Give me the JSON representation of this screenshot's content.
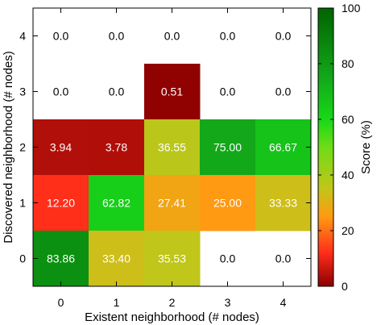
{
  "chart_data": {
    "type": "heatmap",
    "xlabel": "Existent neighborhood (# nodes)",
    "ylabel": "Discovered neighborhood (# nodes)",
    "x_ticks": [
      "0",
      "1",
      "2",
      "3",
      "4"
    ],
    "y_ticks": [
      "0",
      "1",
      "2",
      "3",
      "4"
    ],
    "colorbar": {
      "label": "Score (%)",
      "range": [
        0,
        100
      ],
      "ticks": [
        "0",
        "20",
        "40",
        "60",
        "80",
        "100"
      ]
    },
    "cells": [
      {
        "x": 0,
        "y": 4,
        "value": 0.0,
        "label": "0.0",
        "colored": false
      },
      {
        "x": 1,
        "y": 4,
        "value": 0.0,
        "label": "0.0",
        "colored": false
      },
      {
        "x": 2,
        "y": 4,
        "value": 0.0,
        "label": "0.0",
        "colored": false
      },
      {
        "x": 3,
        "y": 4,
        "value": 0.0,
        "label": "0.0",
        "colored": false
      },
      {
        "x": 4,
        "y": 4,
        "value": 0.0,
        "label": "0.0",
        "colored": false
      },
      {
        "x": 0,
        "y": 3,
        "value": 0.0,
        "label": "0.0",
        "colored": false
      },
      {
        "x": 1,
        "y": 3,
        "value": 0.0,
        "label": "0.0",
        "colored": false
      },
      {
        "x": 2,
        "y": 3,
        "value": 0.51,
        "label": "0.51",
        "colored": true
      },
      {
        "x": 3,
        "y": 3,
        "value": 0.0,
        "label": "0.0",
        "colored": false
      },
      {
        "x": 4,
        "y": 3,
        "value": 0.0,
        "label": "0.0",
        "colored": false
      },
      {
        "x": 0,
        "y": 2,
        "value": 3.94,
        "label": "3.94",
        "colored": true
      },
      {
        "x": 1,
        "y": 2,
        "value": 3.78,
        "label": "3.78",
        "colored": true
      },
      {
        "x": 2,
        "y": 2,
        "value": 36.55,
        "label": "36.55",
        "colored": true
      },
      {
        "x": 3,
        "y": 2,
        "value": 75.0,
        "label": "75.00",
        "colored": true
      },
      {
        "x": 4,
        "y": 2,
        "value": 66.67,
        "label": "66.67",
        "colored": true
      },
      {
        "x": 0,
        "y": 1,
        "value": 12.2,
        "label": "12.20",
        "colored": true
      },
      {
        "x": 1,
        "y": 1,
        "value": 62.82,
        "label": "62.82",
        "colored": true
      },
      {
        "x": 2,
        "y": 1,
        "value": 27.41,
        "label": "27.41",
        "colored": true
      },
      {
        "x": 3,
        "y": 1,
        "value": 25.0,
        "label": "25.00",
        "colored": true
      },
      {
        "x": 4,
        "y": 1,
        "value": 33.33,
        "label": "33.33",
        "colored": true
      },
      {
        "x": 0,
        "y": 0,
        "value": 83.86,
        "label": "83.86",
        "colored": true
      },
      {
        "x": 1,
        "y": 0,
        "value": 33.4,
        "label": "33.40",
        "colored": true
      },
      {
        "x": 2,
        "y": 0,
        "value": 35.53,
        "label": "35.53",
        "colored": true
      },
      {
        "x": 3,
        "y": 0,
        "value": 0.0,
        "label": "0.0",
        "colored": false
      },
      {
        "x": 4,
        "y": 0,
        "value": 0.0,
        "label": "0.0",
        "colored": false
      }
    ],
    "colormap_stops": [
      {
        "value": 0,
        "color": "#8b0000"
      },
      {
        "value": 12,
        "color": "#ff2d1a"
      },
      {
        "value": 25,
        "color": "#ff9a12"
      },
      {
        "value": 35,
        "color": "#c3c51a"
      },
      {
        "value": 50,
        "color": "#6fdc16"
      },
      {
        "value": 60,
        "color": "#18d818"
      },
      {
        "value": 75,
        "color": "#12a81a"
      },
      {
        "value": 100,
        "color": "#006400"
      }
    ]
  }
}
